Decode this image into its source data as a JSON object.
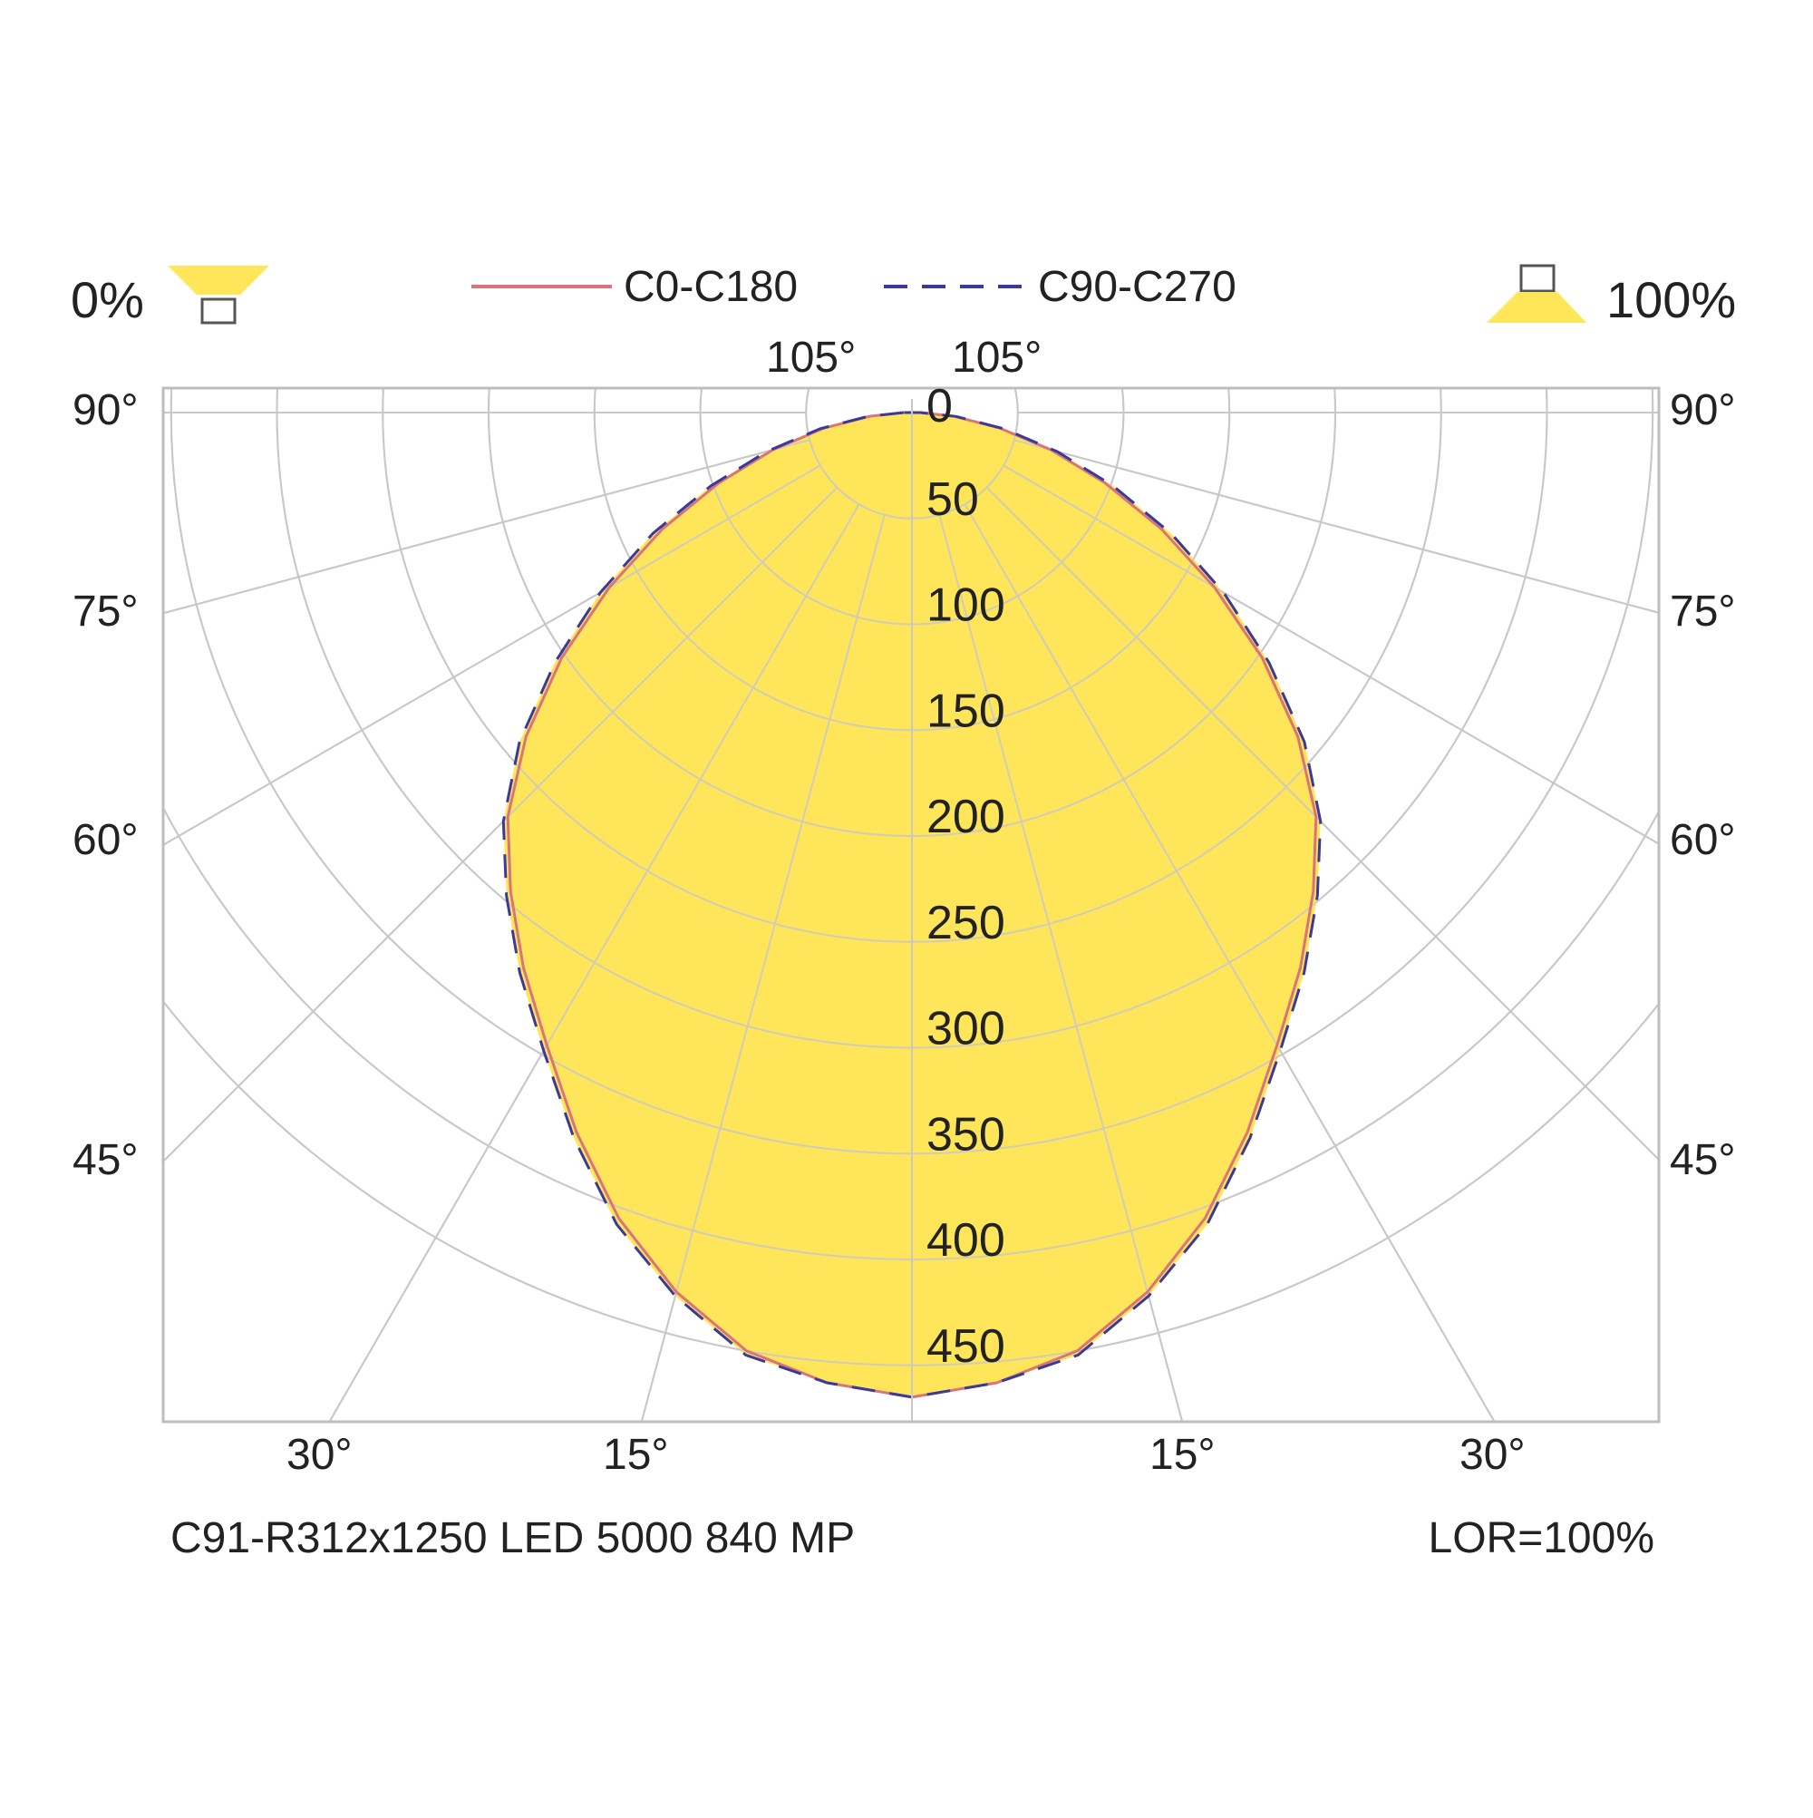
{
  "legend": {
    "left_percent": "0%",
    "right_percent": "100%",
    "series_c0": "C0-C180",
    "series_c90": "C90-C270"
  },
  "footer": {
    "product": "C91-R312x1250 LED 5000 840 MP",
    "lor": "LOR=100%"
  },
  "angle_labels": {
    "top_left": "105°",
    "top_right": "105°",
    "left": [
      "90°",
      "75°",
      "60°",
      "45°"
    ],
    "right": [
      "90°",
      "75°",
      "60°",
      "45°"
    ],
    "bottom_left": [
      "30°",
      "15°"
    ],
    "bottom_right": [
      "15°",
      "30°"
    ]
  },
  "colors": {
    "fill": "#ffe55a",
    "c0_line": "#d9757a",
    "c90_line": "#3a3a9a",
    "grid": "#c8c8c8"
  },
  "chart_data": {
    "type": "polar",
    "radial_ticks": [
      "0",
      "50",
      "100",
      "150",
      "200",
      "250",
      "300",
      "350",
      "400",
      "450"
    ],
    "radial_max": 450,
    "angle_grid_step_deg": 15,
    "series": [
      {
        "name": "C0-C180",
        "angles_deg": [
          0,
          5,
          10,
          15,
          20,
          25,
          30,
          35,
          40,
          45,
          50,
          55,
          60,
          65,
          70,
          75,
          80,
          85,
          90
        ],
        "values": [
          465,
          460,
          450,
          430,
          405,
          375,
          345,
          320,
          295,
          270,
          238,
          202,
          165,
          130,
          97,
          68,
          42,
          20,
          4
        ]
      },
      {
        "name": "C90-C270",
        "angles_deg": [
          0,
          5,
          10,
          15,
          20,
          25,
          30,
          35,
          40,
          45,
          50,
          55,
          60,
          65,
          70,
          75,
          80,
          85,
          90
        ],
        "values": [
          465,
          460,
          452,
          432,
          408,
          378,
          348,
          323,
          298,
          273,
          242,
          206,
          170,
          135,
          101,
          71,
          44,
          21,
          4
        ]
      }
    ]
  }
}
